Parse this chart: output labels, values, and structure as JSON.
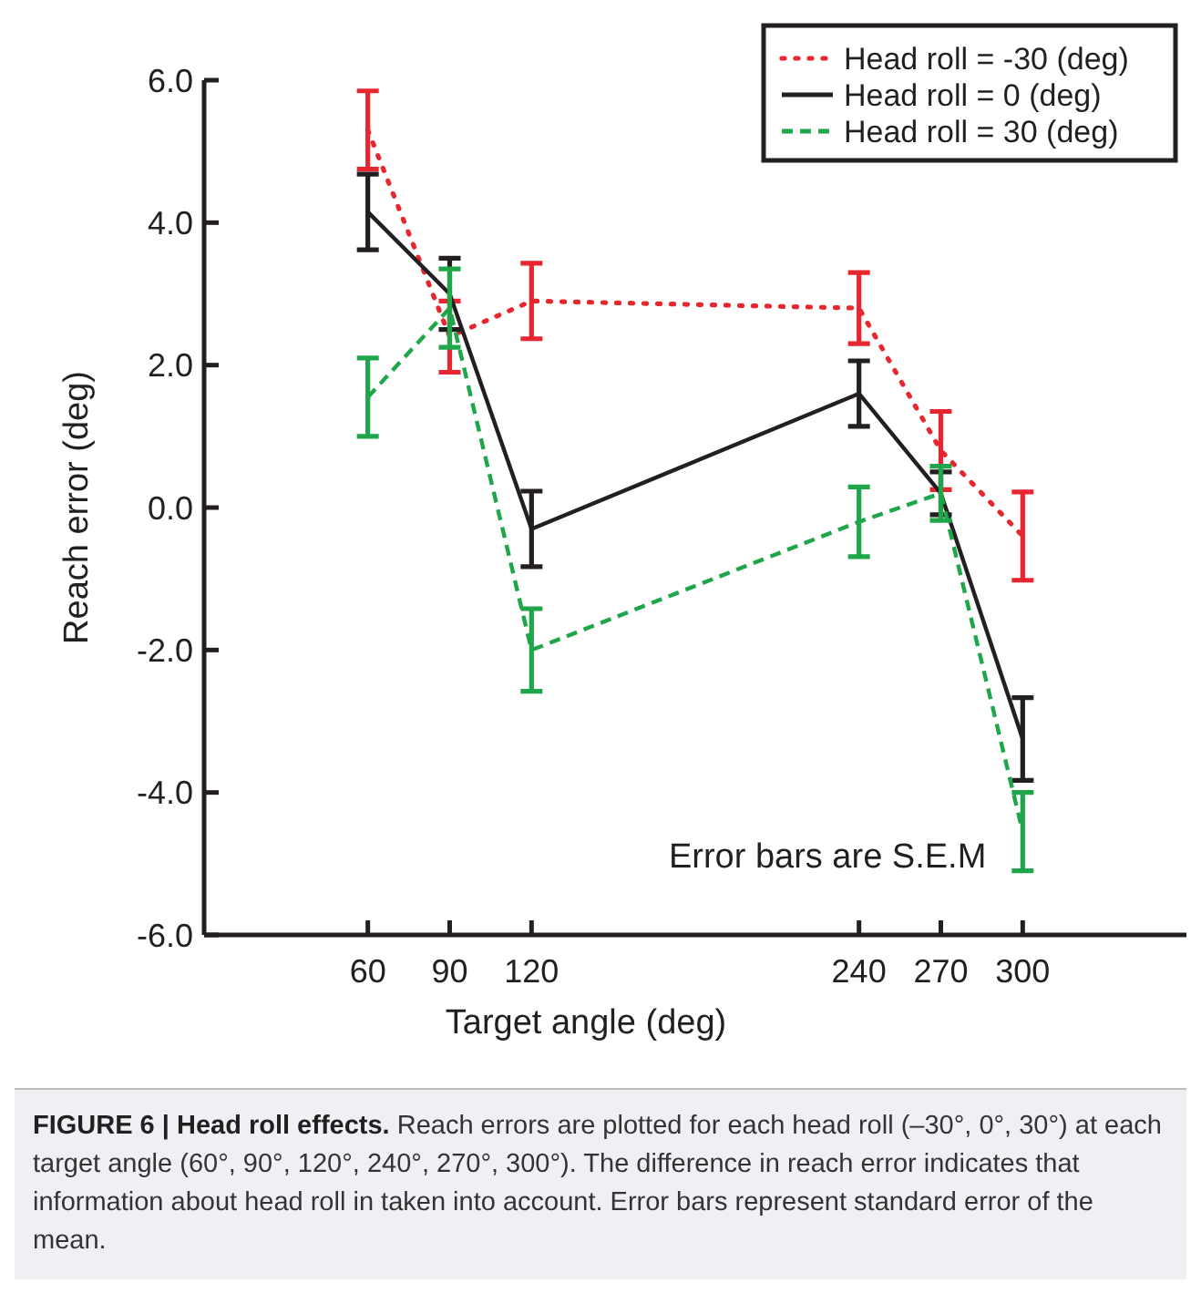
{
  "chart_data": {
    "type": "line",
    "xlabel": "Target angle (deg)",
    "ylabel": "Reach error (deg)",
    "x": [
      60,
      90,
      120,
      240,
      270,
      300
    ],
    "xlim": [
      0,
      360
    ],
    "xticks": [
      60,
      90,
      120,
      240,
      270,
      300
    ],
    "ylim": [
      -6,
      6
    ],
    "yticks": [
      {
        "value": -6,
        "label": "-6.0"
      },
      {
        "value": -4,
        "label": "-4.0"
      },
      {
        "value": -2,
        "label": "-2.0"
      },
      {
        "value": 0,
        "label": "0.0"
      },
      {
        "value": 2,
        "label": "2.0"
      },
      {
        "value": 4,
        "label": "4.0"
      },
      {
        "value": 6,
        "label": "6.0"
      }
    ],
    "series": [
      {
        "name": "Head roll = -30 (deg)",
        "color": "#e8262f",
        "line_style": "dotted",
        "values": [
          5.3,
          2.4,
          2.9,
          2.8,
          0.8,
          -0.4
        ],
        "errors": [
          0.55,
          0.5,
          0.53,
          0.5,
          0.55,
          0.62
        ]
      },
      {
        "name": "Head roll = 0 (deg)",
        "color": "#231f20",
        "line_style": "solid",
        "values": [
          4.15,
          3.0,
          -0.3,
          1.6,
          0.2,
          -3.25
        ],
        "errors": [
          0.53,
          0.5,
          0.53,
          0.46,
          0.3,
          0.58
        ]
      },
      {
        "name": "Head roll = 30 (deg)",
        "color": "#1fa64a",
        "line_style": "dashed",
        "values": [
          1.55,
          2.8,
          -2.0,
          -0.2,
          0.2,
          -4.55
        ],
        "errors": [
          0.55,
          0.55,
          0.58,
          0.49,
          0.38,
          0.55
        ]
      }
    ],
    "marker": "none",
    "grid": false,
    "legend": "top right",
    "annotations": [
      "Error bars are S.E.M",
      "FIGURE 6 | Head roll effects.",
      "Reach errors are plotted for each head roll (–30°, 0°, 30°) at each target angle (60°, 90°, 120°, 240°, 270°, 300°). The difference in reach error indicates that information about head roll in taken into account. Error bars represent standard error of the mean."
    ]
  }
}
